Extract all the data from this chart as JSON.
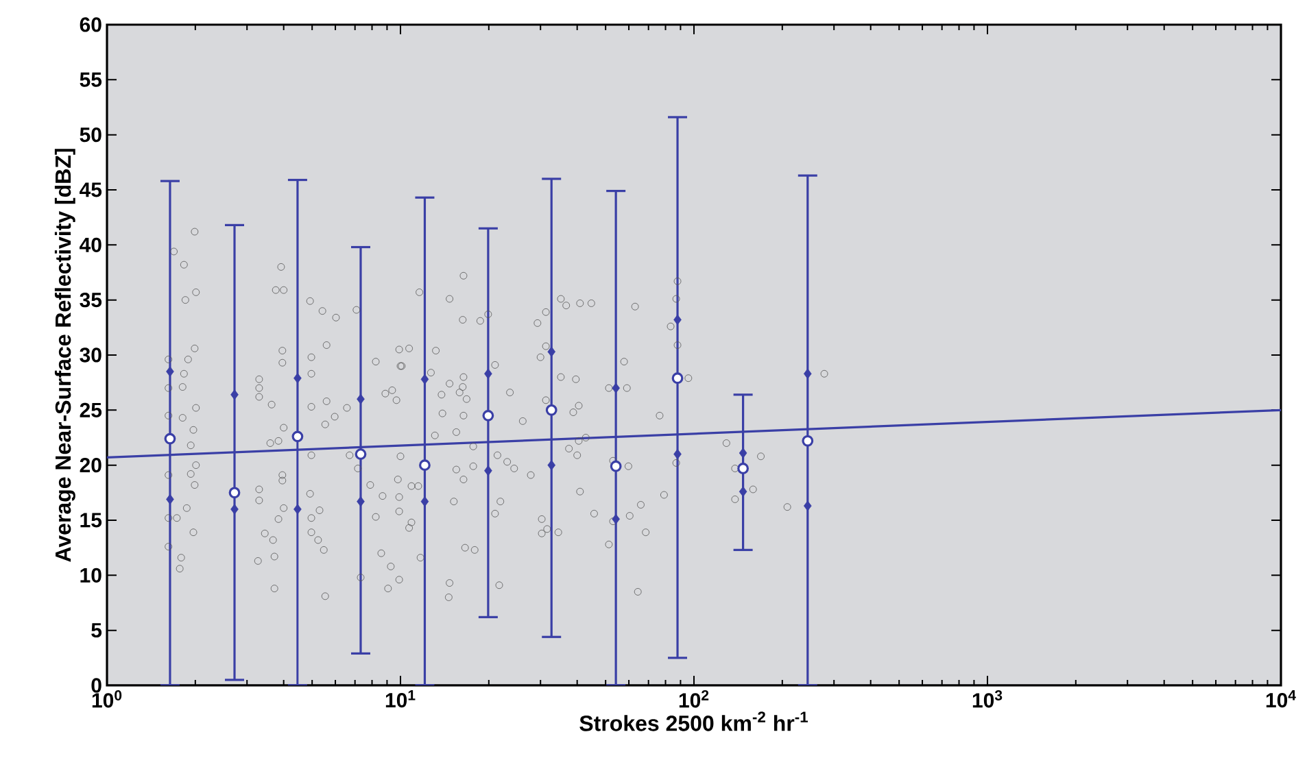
{
  "chart_data": {
    "type": "scatter",
    "xlabel": "Strokes 2500 km$^{-2}$ hr$^{-1}$",
    "ylabel": "Average Near-Surface Reflectivity [dBZ]",
    "log": "x",
    "xlim": [
      1,
      10000
    ],
    "ylim": [
      0,
      60
    ],
    "xticks": [
      {
        "value": 1,
        "label": "10$^{0}$"
      },
      {
        "value": 10,
        "label": "10$^{1}$"
      },
      {
        "value": 100,
        "label": "10$^{2}$"
      },
      {
        "value": 1000,
        "label": "10$^{3}$"
      },
      {
        "value": 10000,
        "label": "10$^{4}$"
      }
    ],
    "yticks": [
      0,
      5,
      10,
      15,
      20,
      25,
      30,
      35,
      40,
      45,
      50,
      55,
      60
    ],
    "series": [
      {
        "marker": "circle",
        "color": "#555555",
        "x": [
          1.99,
          1.69,
          1.83,
          1.85,
          2.01,
          1.99,
          1.89,
          1.83,
          1.81,
          2.01,
          1.81,
          1.97,
          1.93,
          2.01,
          1.93,
          1.99,
          1.87,
          1.73,
          1.97,
          1.79,
          1.77,
          1.62,
          1.62,
          1.62,
          1.62,
          1.62,
          1.62,
          3.92,
          3.76,
          4.0,
          3.96,
          3.96,
          3.3,
          3.3,
          3.3,
          3.64,
          4.0,
          3.6,
          3.84,
          3.96,
          3.96,
          3.3,
          3.3,
          4.0,
          3.84,
          3.45,
          3.68,
          3.72,
          3.27,
          3.72,
          4.92,
          5.42,
          6.03,
          7.08,
          5.6,
          4.97,
          4.97,
          4.97,
          5.6,
          5.97,
          6.57,
          5.54,
          4.97,
          6.71,
          8.24,
          8.88,
          9.37,
          9.9,
          10.0,
          9.69,
          4.92,
          5.3,
          4.97,
          4.97,
          5.24,
          5.48,
          5.54,
          7.16,
          7.89,
          8.69,
          8.24,
          9.8,
          9.9,
          9.9,
          8.6,
          9.27,
          7.32,
          9.07,
          9.9,
          16.4,
          11.6,
          14.7,
          16.3,
          18.7,
          19.9,
          10.7,
          13.2,
          10.1,
          12.7,
          16.4,
          14.7,
          16.3,
          13.8,
          15.9,
          16.8,
          21.0,
          23.6,
          13.9,
          16.4,
          15.5,
          13.1,
          26.1,
          17.7,
          21.4,
          23.1,
          24.4,
          15.5,
          17.7,
          16.4,
          10.0,
          10.9,
          11.5,
          15.2,
          21.9,
          21.0,
          10.9,
          10.7,
          11.7,
          16.6,
          17.9,
          14.7,
          14.6,
          21.7,
          27.8,
          35.2,
          36.7,
          40.9,
          44.7,
          31.3,
          29.3,
          63.0,
          31.3,
          30.0,
          35.2,
          39.6,
          31.3,
          40.5,
          38.8,
          57.8,
          51.3,
          59.1,
          76.4,
          42.8,
          40.5,
          37.5,
          40.0,
          53.0,
          59.8,
          40.9,
          79.1,
          65.9,
          45.7,
          53.0,
          60.4,
          30.3,
          31.6,
          34.5,
          30.3,
          51.3,
          68.5,
          64.4,
          87.9,
          87.0,
          83.3,
          87.9,
          87.0,
          95.7,
          129,
          169,
          138,
          159,
          138,
          208,
          278
        ],
        "values": [
          41.2,
          39.4,
          38.2,
          35.0,
          35.7,
          30.6,
          29.6,
          28.3,
          27.1,
          25.2,
          24.3,
          23.2,
          21.8,
          20.0,
          19.2,
          18.2,
          16.1,
          15.2,
          13.9,
          11.6,
          10.6,
          29.6,
          27.0,
          24.5,
          19.1,
          15.2,
          12.6,
          38.0,
          35.9,
          35.9,
          30.4,
          29.3,
          27.8,
          27.0,
          26.2,
          25.5,
          23.4,
          22.0,
          22.2,
          19.1,
          18.6,
          17.8,
          16.8,
          16.1,
          15.1,
          13.8,
          13.2,
          11.7,
          11.3,
          8.8,
          34.9,
          34.0,
          33.4,
          34.1,
          30.9,
          29.8,
          28.3,
          25.3,
          25.8,
          24.4,
          25.2,
          23.7,
          20.9,
          20.9,
          29.4,
          26.5,
          26.8,
          30.5,
          29.0,
          25.9,
          17.4,
          15.9,
          15.2,
          13.9,
          13.2,
          12.3,
          8.1,
          19.7,
          18.2,
          17.2,
          15.3,
          18.7,
          17.1,
          15.8,
          12.0,
          10.8,
          9.8,
          8.8,
          9.6,
          37.2,
          35.7,
          35.1,
          33.2,
          33.1,
          33.7,
          30.6,
          30.4,
          29.0,
          28.4,
          28.0,
          27.4,
          27.1,
          26.4,
          26.6,
          26.0,
          29.1,
          26.6,
          24.7,
          24.5,
          23.0,
          22.7,
          24.0,
          21.7,
          20.9,
          20.3,
          19.7,
          19.6,
          19.9,
          18.7,
          20.8,
          18.1,
          18.1,
          16.7,
          16.7,
          15.6,
          14.8,
          14.3,
          11.6,
          12.5,
          12.3,
          9.3,
          8.0,
          9.1,
          19.1,
          35.1,
          34.5,
          34.7,
          34.7,
          33.9,
          32.9,
          34.4,
          30.8,
          29.8,
          28.0,
          27.8,
          25.9,
          25.4,
          24.8,
          29.4,
          27.0,
          27.0,
          24.5,
          22.5,
          22.2,
          21.5,
          20.9,
          20.4,
          19.9,
          17.6,
          17.3,
          16.4,
          15.6,
          14.9,
          15.4,
          15.1,
          14.2,
          13.9,
          13.8,
          12.8,
          13.9,
          8.5,
          36.7,
          35.1,
          32.6,
          30.9,
          20.2,
          27.9,
          22.0,
          20.8,
          19.7,
          17.8,
          16.9,
          16.2,
          28.3
        ]
      },
      {
        "type": "line",
        "marker": "none",
        "color": "#3a3fa6",
        "x": [
          1,
          10000
        ],
        "values": [
          20.7,
          25.0
        ]
      },
      {
        "marker": "diamond",
        "color": "#3a3fa6",
        "x": [
          1.64,
          2.72,
          4.46,
          7.32,
          12.1,
          19.9,
          32.7,
          54.2,
          87.9,
          147,
          244
        ],
        "values": [
          28.5,
          26.4,
          27.9,
          26.0,
          27.8,
          28.3,
          30.3,
          27.0,
          33.2,
          21.1,
          28.3
        ]
      },
      {
        "marker": "diamond",
        "color": "#3a3fa6",
        "x": [
          1.64,
          2.72,
          4.46,
          7.32,
          12.1,
          19.9,
          32.7,
          54.2,
          87.9,
          147,
          244
        ],
        "values": [
          16.9,
          16.0,
          16.0,
          16.7,
          16.7,
          19.5,
          20.0,
          15.1,
          21.0,
          17.6,
          16.3
        ]
      },
      {
        "marker": "circle",
        "color": "#3a3fa6",
        "x": [
          1.64,
          2.72,
          4.46,
          7.32,
          12.1,
          19.9,
          32.7,
          54.2,
          87.9,
          147,
          244
        ],
        "values": [
          22.4,
          17.5,
          22.6,
          21.0,
          20.0,
          24.5,
          25.0,
          19.9,
          27.9,
          19.7,
          22.2
        ],
        "errors": [
          [
            0,
            45.8
          ],
          [
            0.5,
            41.8
          ],
          [
            0,
            45.9
          ],
          [
            2.9,
            39.8
          ],
          [
            0,
            44.3
          ],
          [
            6.2,
            41.5
          ],
          [
            4.4,
            46.0
          ],
          [
            0,
            44.9
          ],
          [
            2.5,
            51.6
          ],
          [
            12.3,
            26.4
          ],
          [
            0,
            46.3
          ]
        ]
      }
    ]
  }
}
